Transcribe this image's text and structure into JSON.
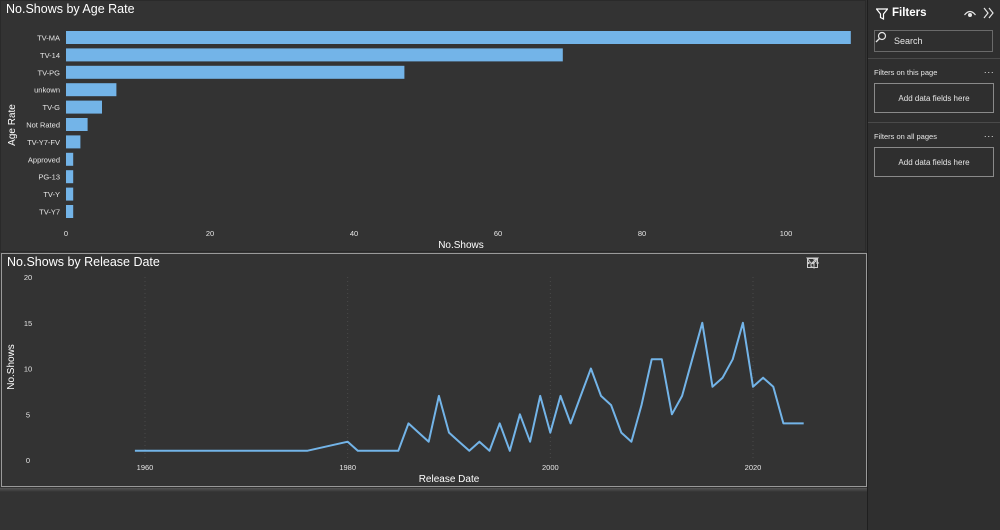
{
  "chart_data": [
    {
      "type": "bar",
      "orientation": "horizontal",
      "title": "No.Shows by Age Rate",
      "xlabel": "No.Shows",
      "ylabel": "Age Rate",
      "categories": [
        "TV-MA",
        "TV-14",
        "TV-PG",
        "unkown",
        "TV-G",
        "Not Rated",
        "TV-Y7-FV",
        "Approved",
        "PG-13",
        "TV-Y",
        "TV-Y7"
      ],
      "values": [
        109,
        69,
        47,
        7,
        5,
        3,
        2,
        1,
        1,
        1,
        1
      ],
      "xlim": [
        0,
        110
      ],
      "xticks": [
        0,
        20,
        40,
        60,
        80,
        100
      ],
      "color": "#73b4e8",
      "grid": false
    },
    {
      "type": "line",
      "title": "No.Shows by Release Date",
      "xlabel": "Release Date",
      "ylabel": "No.Shows",
      "x": [
        1959,
        1966,
        1976,
        1980,
        1981,
        1982,
        1983,
        1984,
        1985,
        1986,
        1987,
        1988,
        1989,
        1990,
        1991,
        1992,
        1993,
        1994,
        1995,
        1996,
        1997,
        1998,
        1999,
        2000,
        2001,
        2002,
        2003,
        2004,
        2005,
        2006,
        2007,
        2008,
        2009,
        2010,
        2011,
        2012,
        2013,
        2014,
        2015,
        2016,
        2017,
        2018,
        2019,
        2020,
        2021,
        2022,
        2023,
        2024,
        2025
      ],
      "values": [
        1,
        1,
        1,
        2,
        1,
        1,
        1,
        1,
        1,
        4,
        3,
        2,
        7,
        3,
        2,
        1,
        2,
        1,
        4,
        1,
        5,
        2,
        7,
        3,
        7,
        4,
        7,
        10,
        7,
        6,
        3,
        2,
        6,
        11,
        11,
        5,
        7,
        11,
        15,
        8,
        9,
        11,
        15,
        8,
        9,
        8,
        4,
        4,
        4
      ],
      "xlim": [
        1955,
        2030
      ],
      "ylim": [
        0,
        20
      ],
      "xticks": [
        1960,
        1980,
        2000,
        2020
      ],
      "yticks": [
        0,
        5,
        10,
        15,
        20
      ],
      "color": "#73b4e8",
      "grid": true
    }
  ],
  "filters_pane": {
    "title": "Filters",
    "search_placeholder": "Search",
    "section_page": "Filters on this page",
    "section_all": "Filters on all pages",
    "more_label": "...",
    "drop_label": "Add data fields here"
  },
  "visual_header": {
    "more_label": "···"
  }
}
